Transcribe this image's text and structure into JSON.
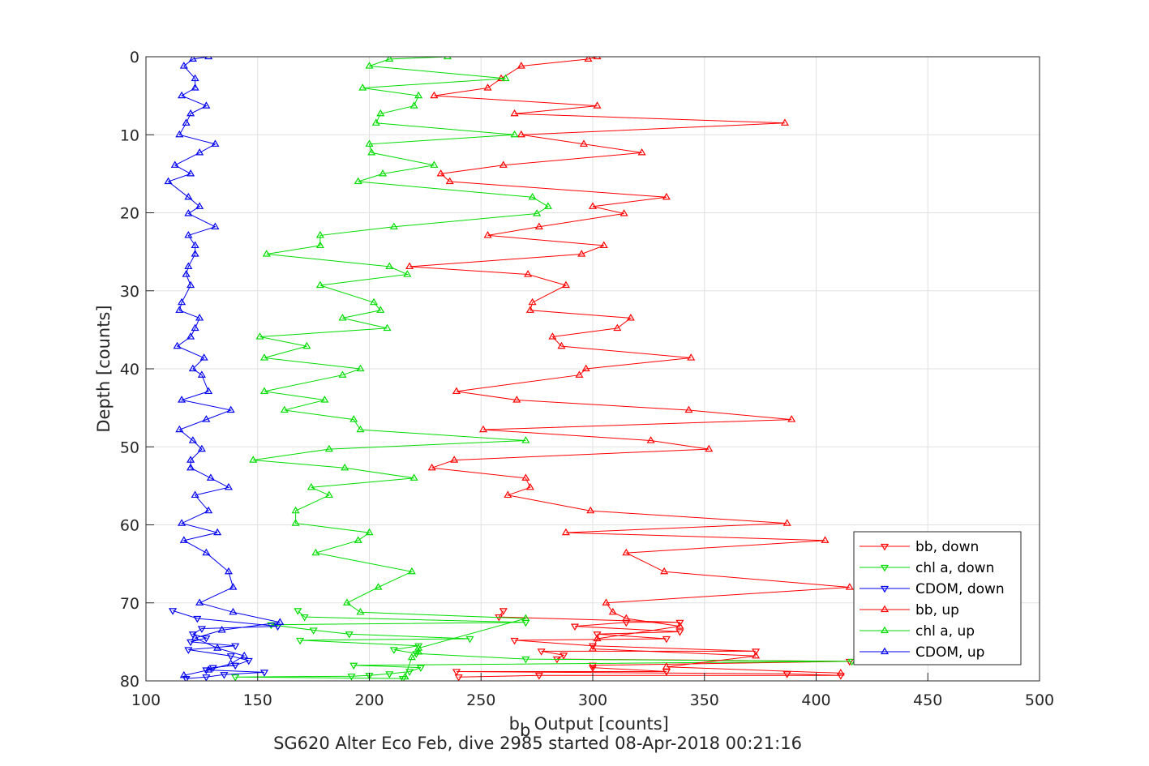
{
  "chart_data": {
    "type": "line",
    "title": "",
    "xlabel": {
      "main": "b",
      "sub": "b",
      "rest": " Output [counts]"
    },
    "ylabel": "Depth [counts]",
    "caption": "SG620 Alter Eco Feb, dive 2985 started 08-Apr-2018 00:21:16",
    "xlim": [
      100,
      500
    ],
    "ylim": [
      0,
      80
    ],
    "y_reversed": true,
    "grid": true,
    "legend_position": "bottom-right",
    "x_ticks": [
      100,
      150,
      200,
      250,
      300,
      350,
      400,
      450,
      500
    ],
    "y_ticks": [
      0,
      10,
      20,
      30,
      40,
      50,
      60,
      70,
      80
    ],
    "x_tick_labels": [
      "100",
      "150",
      "200",
      "250",
      "300",
      "350",
      "400",
      "450",
      "500"
    ],
    "y_tick_labels": [
      "0",
      "10",
      "20",
      "30",
      "40",
      "50",
      "60",
      "70",
      "80"
    ],
    "series": [
      {
        "name": "bb, down",
        "color": "#ff0000",
        "marker": "triangle-down",
        "points": [
          [
            260,
            71
          ],
          [
            258,
            71.8
          ],
          [
            339,
            72.5
          ],
          [
            315,
            72.5
          ],
          [
            292,
            73
          ],
          [
            339,
            73.7
          ],
          [
            302,
            74
          ],
          [
            333,
            74.6
          ],
          [
            265,
            74.8
          ],
          [
            300,
            75.5
          ],
          [
            373,
            76.2
          ],
          [
            277,
            76.2
          ],
          [
            287,
            76.7
          ],
          [
            284,
            77.2
          ],
          [
            415,
            77.5
          ],
          [
            300,
            78
          ],
          [
            300,
            78.3
          ],
          [
            333,
            78.8
          ],
          [
            239,
            78.8
          ],
          [
            387,
            79.1
          ],
          [
            411,
            79.3
          ],
          [
            276,
            79.3
          ],
          [
            240,
            79.5
          ]
        ]
      },
      {
        "name": "chl a, down",
        "color": "#00dd00",
        "marker": "triangle-down",
        "points": [
          [
            168,
            71
          ],
          [
            171,
            71.8
          ],
          [
            270,
            72.5
          ],
          [
            156,
            72.8
          ],
          [
            175,
            73.5
          ],
          [
            191,
            74
          ],
          [
            245,
            74.6
          ],
          [
            169,
            74.8
          ],
          [
            222,
            75.5
          ],
          [
            211,
            76
          ],
          [
            221,
            76.5
          ],
          [
            270,
            77.2
          ],
          [
            416,
            77.5
          ],
          [
            193,
            78
          ],
          [
            223,
            78.3
          ],
          [
            218,
            78.8
          ],
          [
            209,
            79.1
          ],
          [
            200,
            79.3
          ],
          [
            192,
            79.4
          ],
          [
            140,
            79.5
          ],
          [
            215,
            79.7
          ]
        ]
      },
      {
        "name": "CDOM, down",
        "color": "#0000ee",
        "marker": "triangle-down",
        "points": [
          [
            112,
            71
          ],
          [
            123,
            72
          ],
          [
            159,
            73
          ],
          [
            125,
            73.3
          ],
          [
            121,
            74
          ],
          [
            127,
            74.5
          ],
          [
            120,
            75
          ],
          [
            140,
            75.5
          ],
          [
            119,
            76
          ],
          [
            138,
            76.8
          ],
          [
            146,
            77.4
          ],
          [
            140,
            78
          ],
          [
            130,
            78.3
          ],
          [
            127,
            78.6
          ],
          [
            153,
            78.9
          ],
          [
            135,
            79.2
          ],
          [
            127,
            79.5
          ],
          [
            118,
            79.7
          ]
        ]
      },
      {
        "name": "bb, up",
        "color": "#ff0000",
        "marker": "triangle-up",
        "points": [
          [
            302,
            0
          ],
          [
            298,
            0.3
          ],
          [
            268,
            1.2
          ],
          [
            259,
            2.8
          ],
          [
            253,
            4
          ],
          [
            229,
            5
          ],
          [
            302,
            6.3
          ],
          [
            265,
            7.3
          ],
          [
            386,
            8.5
          ],
          [
            268,
            10
          ],
          [
            296,
            11.2
          ],
          [
            322,
            12.3
          ],
          [
            260,
            13.9
          ],
          [
            232,
            15
          ],
          [
            236,
            16
          ],
          [
            333,
            18
          ],
          [
            300,
            19.2
          ],
          [
            314,
            20.1
          ],
          [
            276,
            21.8
          ],
          [
            253,
            22.9
          ],
          [
            305,
            24.2
          ],
          [
            295,
            25.3
          ],
          [
            218,
            26.9
          ],
          [
            271,
            27.9
          ],
          [
            288,
            29.3
          ],
          [
            273,
            31.5
          ],
          [
            272,
            32.5
          ],
          [
            317,
            33.5
          ],
          [
            311,
            34.8
          ],
          [
            282,
            35.9
          ],
          [
            286,
            37.1
          ],
          [
            344,
            38.6
          ],
          [
            297,
            40
          ],
          [
            294,
            40.8
          ],
          [
            239,
            42.9
          ],
          [
            266,
            44
          ],
          [
            343,
            45.3
          ],
          [
            389,
            46.5
          ],
          [
            251,
            47.8
          ],
          [
            326,
            49.2
          ],
          [
            352,
            50.3
          ],
          [
            238,
            51.7
          ],
          [
            228,
            52.7
          ],
          [
            270,
            54
          ],
          [
            272,
            55.2
          ],
          [
            262,
            56.2
          ],
          [
            299,
            58.2
          ],
          [
            387,
            59.8
          ],
          [
            288,
            61
          ],
          [
            404,
            62
          ],
          [
            315,
            63.6
          ],
          [
            332,
            66
          ],
          [
            415,
            68
          ],
          [
            306,
            70
          ],
          [
            309,
            71.2
          ],
          [
            315,
            72
          ],
          [
            339,
            73
          ],
          [
            302,
            74.6
          ],
          [
            300,
            75.9
          ],
          [
            373,
            76.8
          ],
          [
            333,
            78.2
          ],
          [
            411,
            79
          ]
        ]
      },
      {
        "name": "chl a, up",
        "color": "#00dd00",
        "marker": "triangle-up",
        "points": [
          [
            235,
            0
          ],
          [
            209,
            0.3
          ],
          [
            200,
            1.2
          ],
          [
            261,
            2.8
          ],
          [
            197,
            4
          ],
          [
            222,
            5
          ],
          [
            220,
            6.3
          ],
          [
            205,
            7.3
          ],
          [
            203,
            8.5
          ],
          [
            265,
            10
          ],
          [
            200,
            11.2
          ],
          [
            201,
            12.3
          ],
          [
            229,
            13.9
          ],
          [
            206,
            15
          ],
          [
            195,
            16
          ],
          [
            273,
            18
          ],
          [
            280,
            19.2
          ],
          [
            275,
            20.1
          ],
          [
            211,
            21.8
          ],
          [
            178,
            22.9
          ],
          [
            178,
            24.2
          ],
          [
            154,
            25.3
          ],
          [
            209,
            26.9
          ],
          [
            217,
            27.9
          ],
          [
            178,
            29.3
          ],
          [
            202,
            31.5
          ],
          [
            205,
            32.5
          ],
          [
            188,
            33.5
          ],
          [
            208,
            34.8
          ],
          [
            151,
            35.9
          ],
          [
            172,
            37.1
          ],
          [
            153,
            38.6
          ],
          [
            196,
            40
          ],
          [
            188,
            40.8
          ],
          [
            153,
            42.9
          ],
          [
            180,
            44
          ],
          [
            162,
            45.3
          ],
          [
            193,
            46.5
          ],
          [
            196,
            47.8
          ],
          [
            270,
            49.2
          ],
          [
            182,
            50.3
          ],
          [
            148,
            51.7
          ],
          [
            189,
            52.7
          ],
          [
            220,
            54
          ],
          [
            174,
            55.2
          ],
          [
            182,
            56.2
          ],
          [
            167,
            58.2
          ],
          [
            167,
            59.8
          ],
          [
            200,
            61
          ],
          [
            195,
            62
          ],
          [
            176,
            63.6
          ],
          [
            219,
            66
          ],
          [
            204,
            68
          ],
          [
            190,
            70
          ],
          [
            196,
            71.2
          ],
          [
            270,
            72
          ],
          [
            222,
            75.8
          ],
          [
            222,
            76.3
          ],
          [
            219,
            77
          ],
          [
            216,
            79.5
          ]
        ]
      },
      {
        "name": "CDOM, up",
        "color": "#0000ee",
        "marker": "triangle-up",
        "points": [
          [
            128,
            0
          ],
          [
            121,
            0.3
          ],
          [
            117,
            1.2
          ],
          [
            122,
            2.8
          ],
          [
            122,
            4
          ],
          [
            116,
            5
          ],
          [
            127,
            6.3
          ],
          [
            120,
            7.3
          ],
          [
            118,
            8.5
          ],
          [
            115,
            10
          ],
          [
            131,
            11.2
          ],
          [
            124,
            12.3
          ],
          [
            113,
            13.9
          ],
          [
            120,
            15
          ],
          [
            110,
            16
          ],
          [
            119,
            18
          ],
          [
            124,
            19.2
          ],
          [
            119,
            20.1
          ],
          [
            131,
            21.8
          ],
          [
            119,
            22.9
          ],
          [
            122,
            24.2
          ],
          [
            122,
            25.3
          ],
          [
            119,
            26.9
          ],
          [
            118,
            27.9
          ],
          [
            120,
            29.3
          ],
          [
            116,
            31.5
          ],
          [
            115,
            32.5
          ],
          [
            124,
            33.5
          ],
          [
            122,
            34.8
          ],
          [
            120,
            35.9
          ],
          [
            114,
            37.1
          ],
          [
            126,
            38.6
          ],
          [
            121,
            40
          ],
          [
            125,
            40.8
          ],
          [
            128,
            42.9
          ],
          [
            116,
            44
          ],
          [
            138,
            45.3
          ],
          [
            127,
            46.5
          ],
          [
            115,
            47.8
          ],
          [
            121,
            49.2
          ],
          [
            125,
            50.3
          ],
          [
            120,
            51.7
          ],
          [
            120,
            52.7
          ],
          [
            129,
            54
          ],
          [
            137,
            55.2
          ],
          [
            122,
            56.2
          ],
          [
            128,
            58.2
          ],
          [
            116,
            59.8
          ],
          [
            132,
            61
          ],
          [
            117,
            62
          ],
          [
            127,
            63.6
          ],
          [
            137,
            66
          ],
          [
            139,
            68
          ],
          [
            124,
            70
          ],
          [
            139,
            71.2
          ],
          [
            160,
            72.5
          ],
          [
            134,
            73.5
          ],
          [
            122,
            74.5
          ],
          [
            132,
            75.8
          ],
          [
            144,
            76.8
          ],
          [
            138,
            77.8
          ],
          [
            128,
            78.6
          ],
          [
            117,
            79.3
          ]
        ]
      }
    ]
  }
}
